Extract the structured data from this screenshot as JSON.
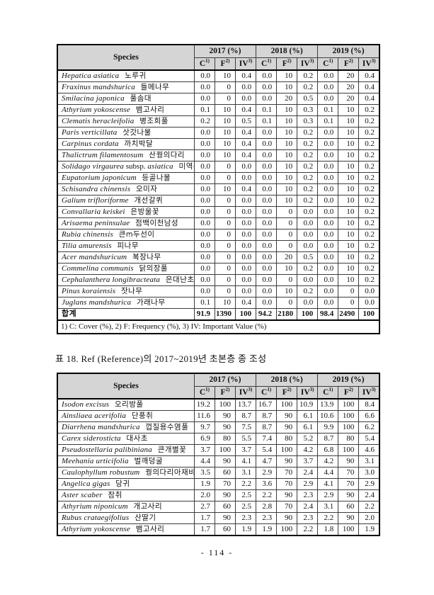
{
  "page": {
    "number_label": "- 114 -"
  },
  "tables": [
    {
      "header": {
        "species_label": "Species",
        "year_groups": [
          "2017 (%)",
          "2018 (%)",
          "2019 (%)"
        ],
        "sub_headers": [
          {
            "base": "C",
            "sup": "1)"
          },
          {
            "base": "F",
            "sup": "2)"
          },
          {
            "base": "IV",
            "sup": "3)"
          }
        ]
      },
      "rows": [
        {
          "latin": "Hepatica asiatica",
          "korean": "노루귀",
          "values": [
            "0.0",
            "10",
            "0.4",
            "0.0",
            "10",
            "0.2",
            "0.0",
            "20",
            "0.4"
          ]
        },
        {
          "latin": "Fraxinus mandshurica",
          "korean": "들메나무",
          "values": [
            "0.0",
            "0",
            "0.0",
            "0.0",
            "10",
            "0.2",
            "0.0",
            "20",
            "0.4"
          ]
        },
        {
          "latin": "Smilacina japonica",
          "korean": "풀솜대",
          "values": [
            "0.0",
            "0",
            "0.0",
            "0.0",
            "20",
            "0.5",
            "0.0",
            "20",
            "0.4"
          ]
        },
        {
          "latin": "Athyrium yokoscense",
          "korean": "뱀고사리",
          "values": [
            "0.1",
            "10",
            "0.4",
            "0.1",
            "10",
            "0.3",
            "0.1",
            "10",
            "0.2"
          ]
        },
        {
          "latin": "Clematis heracleifolia",
          "korean": "병조희풀",
          "values": [
            "0.2",
            "10",
            "0.5",
            "0.1",
            "10",
            "0.3",
            "0.1",
            "10",
            "0.2"
          ]
        },
        {
          "latin": "Paris verticillata",
          "korean": "삿갓나물",
          "values": [
            "0.0",
            "10",
            "0.4",
            "0.0",
            "10",
            "0.2",
            "0.0",
            "10",
            "0.2"
          ]
        },
        {
          "latin": "Carpinus cordata",
          "korean": "까치박달",
          "values": [
            "0.0",
            "10",
            "0.4",
            "0.0",
            "10",
            "0.2",
            "0.0",
            "10",
            "0.2"
          ]
        },
        {
          "latin": "Thalictrum filamentosum",
          "korean": "산꿩의다리",
          "values": [
            "0.0",
            "10",
            "0.4",
            "0.0",
            "10",
            "0.2",
            "0.0",
            "10",
            "0.2"
          ]
        },
        {
          "latin": "Solidago virgaurea subsp. asiatica",
          "korean": "미역취",
          "values": [
            "0.0",
            "0",
            "0.0",
            "0.0",
            "10",
            "0.2",
            "0.0",
            "10",
            "0.2"
          ]
        },
        {
          "latin": "Eupatorium japonicum",
          "korean": "등골나물",
          "values": [
            "0.0",
            "0",
            "0.0",
            "0.0",
            "10",
            "0.2",
            "0.0",
            "10",
            "0.2"
          ]
        },
        {
          "latin": "Schisandra chinensis",
          "korean": "오미자",
          "values": [
            "0.0",
            "10",
            "0.4",
            "0.0",
            "10",
            "0.2",
            "0.0",
            "10",
            "0.2"
          ]
        },
        {
          "latin": "Galium trifloriforme",
          "korean": "개선갈퀴",
          "values": [
            "0.0",
            "0",
            "0.0",
            "0.0",
            "10",
            "0.2",
            "0.0",
            "10",
            "0.2"
          ]
        },
        {
          "latin": "Convallaria keiskei",
          "korean": "은방울꽃",
          "values": [
            "0.0",
            "0",
            "0.0",
            "0.0",
            "0",
            "0.0",
            "0.0",
            "10",
            "0.2"
          ]
        },
        {
          "latin": "Arisaema peninsulae",
          "korean": "점백이천남성",
          "values": [
            "0.0",
            "0",
            "0.0",
            "0.0",
            "0",
            "0.0",
            "0.0",
            "10",
            "0.2"
          ]
        },
        {
          "latin": "Rubia chinensis",
          "korean": "큰ꭑ두선이",
          "values": [
            "0.0",
            "0",
            "0.0",
            "0.0",
            "0",
            "0.0",
            "0.0",
            "10",
            "0.2"
          ]
        },
        {
          "latin": "Tilia amurensis",
          "korean": "피나무",
          "values": [
            "0.0",
            "0",
            "0.0",
            "0.0",
            "0",
            "0.0",
            "0.0",
            "10",
            "0.2"
          ]
        },
        {
          "latin": "Acer mandshuricum",
          "korean": "복장나무",
          "values": [
            "0.0",
            "0",
            "0.0",
            "0.0",
            "20",
            "0.5",
            "0.0",
            "10",
            "0.2"
          ]
        },
        {
          "latin": "Commelina communis",
          "korean": "닭의장풀",
          "values": [
            "0.0",
            "0",
            "0.0",
            "0.0",
            "10",
            "0.2",
            "0.0",
            "10",
            "0.2"
          ]
        },
        {
          "latin": "Cephalanthera longibracteata",
          "korean": "은대난초",
          "values": [
            "0.0",
            "0",
            "0.0",
            "0.0",
            "0",
            "0.0",
            "0.0",
            "10",
            "0.2"
          ]
        },
        {
          "latin": "Pinus koraiensis",
          "korean": "잣나무",
          "values": [
            "0.0",
            "0",
            "0.0",
            "0.0",
            "10",
            "0.2",
            "0.0",
            "0",
            "0.0"
          ]
        },
        {
          "latin": "Juglans mandshurica",
          "korean": "가래나무",
          "values": [
            "0.1",
            "10",
            "0.4",
            "0.0",
            "0",
            "0.0",
            "0.0",
            "0",
            "0.0"
          ]
        }
      ],
      "total_row": {
        "label": "합계",
        "values": [
          "91.9",
          "1390",
          "100",
          "94.2",
          "2180",
          "100",
          "98.4",
          "2490",
          "100"
        ]
      },
      "footnote": "1) C: Cover (%), 2) F: Frequency (%), 3) IV: Important Value (%)"
    },
    {
      "caption": "표 18. Ref (Reference)의 2017~2019년 초본층 종 조성",
      "header": {
        "species_label": "Species",
        "year_groups": [
          "2017 (%)",
          "2018 (%)",
          "2019 (%)"
        ],
        "sub_headers": [
          {
            "base": "C",
            "sup": "1)"
          },
          {
            "base": "F",
            "sup": "2)"
          },
          {
            "base": "IV",
            "sup": "3)"
          }
        ]
      },
      "rows": [
        {
          "latin": "Isodon excisus",
          "korean": "오리방풀",
          "values": [
            "19.2",
            "100",
            "13.7",
            "16.7",
            "100",
            "10.9",
            "13.9",
            "100",
            "8.4"
          ]
        },
        {
          "latin": "Ainsliaea acerifolia",
          "korean": "단풍취",
          "values": [
            "11.6",
            "90",
            "8.7",
            "8.7",
            "90",
            "6.1",
            "10.6",
            "100",
            "6.6"
          ]
        },
        {
          "latin": "Diarrhena mandshurica",
          "korean": "껍질용수염풀",
          "values": [
            "9.7",
            "90",
            "7.5",
            "8.7",
            "90",
            "6.1",
            "9.9",
            "100",
            "6.2"
          ]
        },
        {
          "latin": "Carex siderosticta",
          "korean": "대사초",
          "values": [
            "6.9",
            "80",
            "5.5",
            "7.4",
            "80",
            "5.2",
            "8.7",
            "80",
            "5.4"
          ]
        },
        {
          "latin": "Pseudostellaria palibiniana",
          "korean": "큰개별꽃",
          "values": [
            "3.7",
            "100",
            "3.7",
            "5.4",
            "100",
            "4.2",
            "6.8",
            "100",
            "4.6"
          ]
        },
        {
          "latin": "Meehania urticifolia",
          "korean": "벌깨덩굴",
          "values": [
            "4.4",
            "90",
            "4.1",
            "4.7",
            "90",
            "3.7",
            "4.2",
            "90",
            "3.1"
          ]
        },
        {
          "latin": "Caulophyllum robustum",
          "korean": "꿩의다리아재비",
          "values": [
            "3.5",
            "60",
            "3.1",
            "2.9",
            "70",
            "2.4",
            "4.4",
            "70",
            "3.0"
          ]
        },
        {
          "latin": "Angelica gigas",
          "korean": "당귀",
          "values": [
            "1.9",
            "70",
            "2.2",
            "3.6",
            "70",
            "2.9",
            "4.1",
            "70",
            "2.9"
          ]
        },
        {
          "latin": "Aster scaber",
          "korean": "참취",
          "values": [
            "2.0",
            "90",
            "2.5",
            "2.2",
            "90",
            "2.3",
            "2.9",
            "90",
            "2.4"
          ]
        },
        {
          "latin": "Athyrium niponicum",
          "korean": "개고사리",
          "values": [
            "2.7",
            "60",
            "2.5",
            "2.8",
            "70",
            "2.4",
            "3.1",
            "60",
            "2.2"
          ]
        },
        {
          "latin": "Rubus crataegifolius",
          "korean": "산딸기",
          "values": [
            "1.7",
            "90",
            "2.3",
            "2.3",
            "90",
            "2.3",
            "2.2",
            "90",
            "2.0"
          ]
        },
        {
          "latin": "Athyrium yokoscense",
          "korean": "뱀고사리",
          "values": [
            "1.7",
            "60",
            "1.9",
            "1.9",
            "100",
            "2.2",
            "1.8",
            "100",
            "1.9"
          ]
        }
      ]
    }
  ]
}
